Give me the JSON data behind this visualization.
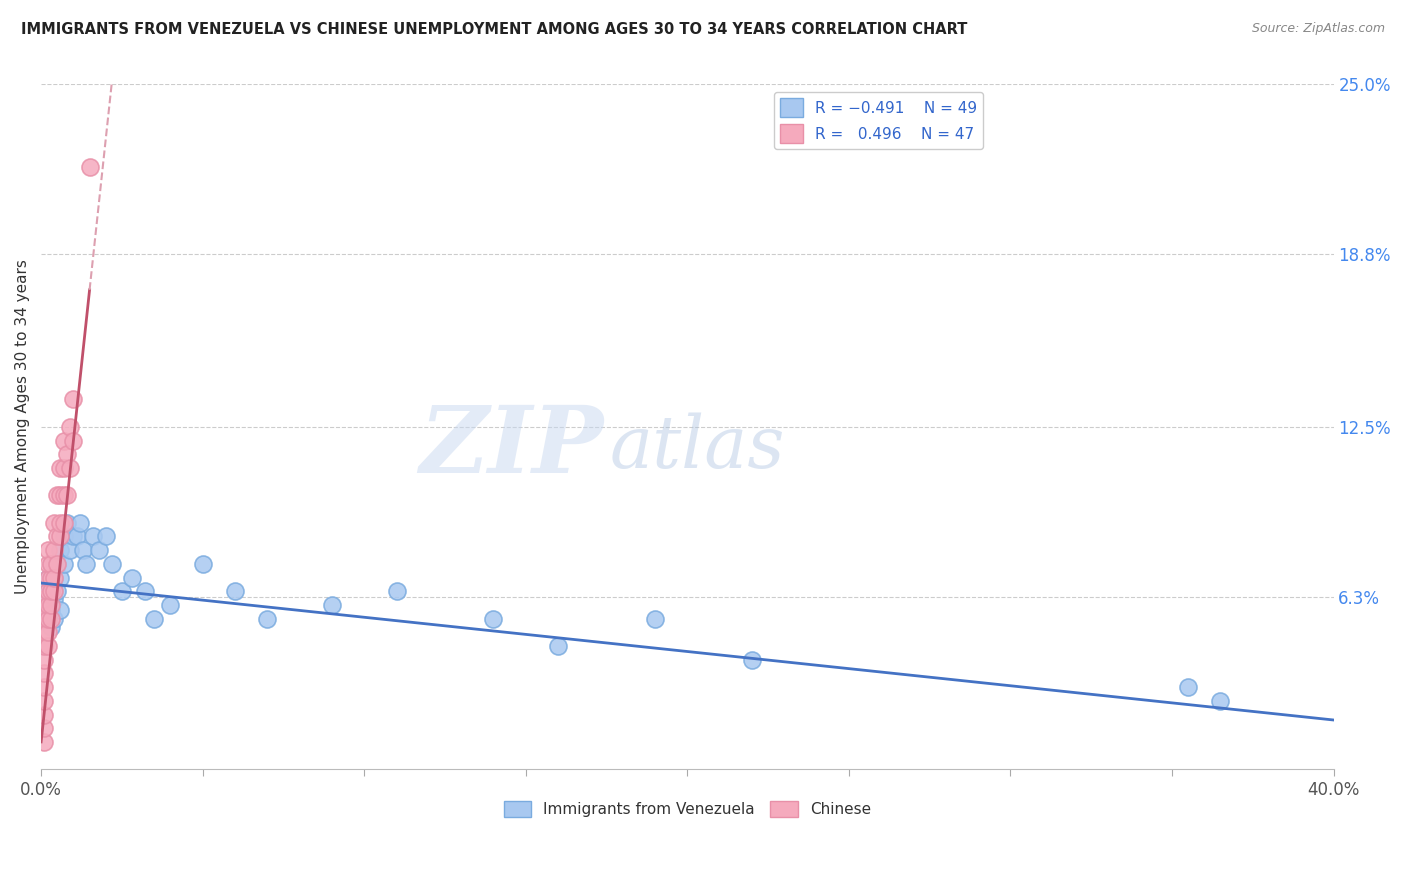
{
  "title": "IMMIGRANTS FROM VENEZUELA VS CHINESE UNEMPLOYMENT AMONG AGES 30 TO 34 YEARS CORRELATION CHART",
  "source": "Source: ZipAtlas.com",
  "ylabel": "Unemployment Among Ages 30 to 34 years",
  "xlim": [
    0.0,
    0.4
  ],
  "ylim": [
    0.0,
    0.25
  ],
  "xticks": [
    0.0,
    0.05,
    0.1,
    0.15,
    0.2,
    0.25,
    0.3,
    0.35,
    0.4
  ],
  "xticklabels": [
    "0.0%",
    "",
    "",
    "",
    "",
    "",
    "",
    "",
    "40.0%"
  ],
  "yticks_right": [
    0.063,
    0.125,
    0.188,
    0.25
  ],
  "ytick_right_labels": [
    "6.3%",
    "12.5%",
    "18.8%",
    "25.0%"
  ],
  "blue_color": "#A8C8F0",
  "pink_color": "#F5AABD",
  "blue_edge_color": "#7AABDF",
  "pink_edge_color": "#E890A8",
  "blue_line_color": "#4472C4",
  "pink_line_color": "#C0506A",
  "pink_dash_color": "#DDA0B0",
  "legend_r1": "R = -0.491",
  "legend_n1": "N = 49",
  "legend_r2": "R =  0.496",
  "legend_n2": "N = 47",
  "watermark_zip": "ZIP",
  "watermark_atlas": "atlas",
  "venezuela_x": [
    0.001,
    0.001,
    0.001,
    0.002,
    0.002,
    0.002,
    0.002,
    0.003,
    0.003,
    0.003,
    0.003,
    0.003,
    0.004,
    0.004,
    0.004,
    0.005,
    0.005,
    0.006,
    0.006,
    0.006,
    0.007,
    0.007,
    0.008,
    0.009,
    0.01,
    0.011,
    0.012,
    0.013,
    0.014,
    0.016,
    0.018,
    0.02,
    0.022,
    0.025,
    0.028,
    0.032,
    0.035,
    0.04,
    0.05,
    0.06,
    0.07,
    0.09,
    0.11,
    0.14,
    0.16,
    0.19,
    0.22,
    0.355,
    0.365
  ],
  "venezuela_y": [
    0.063,
    0.058,
    0.055,
    0.07,
    0.065,
    0.06,
    0.055,
    0.075,
    0.06,
    0.065,
    0.058,
    0.052,
    0.07,
    0.062,
    0.055,
    0.075,
    0.065,
    0.08,
    0.07,
    0.058,
    0.085,
    0.075,
    0.09,
    0.08,
    0.085,
    0.085,
    0.09,
    0.08,
    0.075,
    0.085,
    0.08,
    0.085,
    0.075,
    0.065,
    0.07,
    0.065,
    0.055,
    0.06,
    0.075,
    0.065,
    0.055,
    0.06,
    0.065,
    0.055,
    0.045,
    0.055,
    0.04,
    0.03,
    0.025
  ],
  "chinese_x": [
    0.001,
    0.001,
    0.001,
    0.001,
    0.001,
    0.001,
    0.001,
    0.001,
    0.001,
    0.001,
    0.001,
    0.001,
    0.002,
    0.002,
    0.002,
    0.002,
    0.002,
    0.002,
    0.002,
    0.002,
    0.003,
    0.003,
    0.003,
    0.003,
    0.003,
    0.004,
    0.004,
    0.004,
    0.004,
    0.005,
    0.005,
    0.005,
    0.006,
    0.006,
    0.006,
    0.006,
    0.007,
    0.007,
    0.007,
    0.007,
    0.008,
    0.008,
    0.009,
    0.009,
    0.01,
    0.01,
    0.015
  ],
  "chinese_y": [
    0.01,
    0.015,
    0.02,
    0.025,
    0.03,
    0.035,
    0.04,
    0.045,
    0.05,
    0.055,
    0.058,
    0.062,
    0.045,
    0.05,
    0.055,
    0.06,
    0.065,
    0.07,
    0.075,
    0.08,
    0.055,
    0.06,
    0.065,
    0.07,
    0.075,
    0.065,
    0.07,
    0.08,
    0.09,
    0.075,
    0.085,
    0.1,
    0.085,
    0.09,
    0.1,
    0.11,
    0.09,
    0.1,
    0.11,
    0.12,
    0.1,
    0.115,
    0.11,
    0.125,
    0.12,
    0.135,
    0.22
  ],
  "blue_trend_x0": 0.0,
  "blue_trend_y0": 0.068,
  "blue_trend_x1": 0.4,
  "blue_trend_y1": 0.018,
  "pink_trend_x0": 0.0,
  "pink_trend_y0": 0.01,
  "pink_trend_x1": 0.015,
  "pink_trend_y1": 0.175
}
